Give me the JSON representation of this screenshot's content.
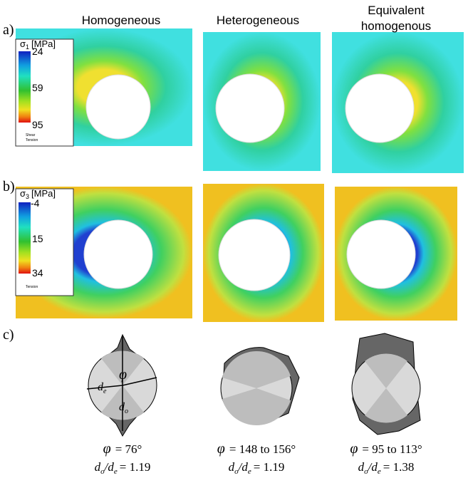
{
  "panels": {
    "a": "a)",
    "b": "b)",
    "c": "c)"
  },
  "columns": [
    {
      "title": [
        "Homogeneous"
      ]
    },
    {
      "title": [
        "Heterogeneous"
      ]
    },
    {
      "title": [
        "Equivalent",
        "homogenous"
      ]
    }
  ],
  "legend_a": {
    "symbol": "σ",
    "sub": "1",
    "unit": "[MPa]",
    "ticks": [
      24,
      59,
      95
    ],
    "markers": [
      "Shear",
      "Tension"
    ]
  },
  "legend_b": {
    "symbol": "σ",
    "sub": "3",
    "unit": "[MPa]",
    "ticks": [
      -4,
      15,
      34
    ],
    "markers": [
      "Tension"
    ]
  },
  "diagram_labels": {
    "phi": "φ",
    "de": "d",
    "de_sub": "e",
    "do": "d",
    "do_sub": "o"
  },
  "captions": [
    {
      "phi": "φ",
      "angle": "= 76°",
      "num": "d",
      "num_sub": "o",
      "den": "/d",
      "den_sub": "e",
      "ratio": "= 1.19"
    },
    {
      "phi": "φ",
      "angle": "= 148 to 156°",
      "num": "d",
      "num_sub": "o",
      "den": "/d",
      "den_sub": "e",
      "ratio": "= 1.19"
    },
    {
      "phi": "φ",
      "angle": "= 95 to 113°",
      "num": "d",
      "num_sub": "o",
      "den": "/d",
      "den_sub": "e",
      "ratio": "= 1.38"
    }
  ]
}
